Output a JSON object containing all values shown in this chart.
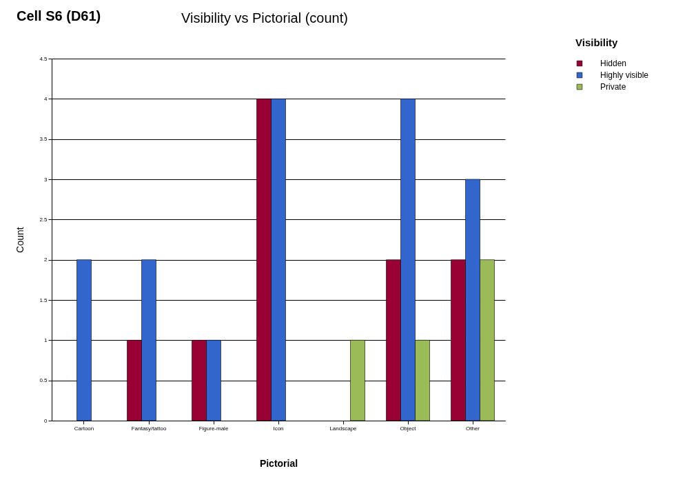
{
  "chart_data": {
    "type": "bar",
    "title": "Cell S6 (D61)",
    "subtitle": "Visibility vs Pictorial (count)",
    "xlabel": "Pictorial",
    "ylabel": "Count",
    "legend_title": "Visibility",
    "categories": [
      "Cartoon",
      "Fantasy/tattoo",
      "Figure-male",
      "Icon",
      "Landscape",
      "Object",
      "Other"
    ],
    "series": [
      {
        "name": "Hidden",
        "color": "#990033",
        "values": [
          null,
          1,
          1,
          4,
          null,
          2,
          2
        ]
      },
      {
        "name": "Highly visible",
        "color": "#3366cc",
        "values": [
          2,
          2,
          1,
          4,
          null,
          4,
          3
        ]
      },
      {
        "name": "Private",
        "color": "#9bbb59",
        "values": [
          null,
          null,
          null,
          null,
          1,
          1,
          2
        ]
      }
    ],
    "ylim": [
      0,
      4.5
    ],
    "yticks": [
      0,
      0.5,
      1,
      1.5,
      2,
      2.5,
      3,
      3.5,
      4,
      4.5
    ],
    "grid": "y",
    "legend": "right"
  }
}
